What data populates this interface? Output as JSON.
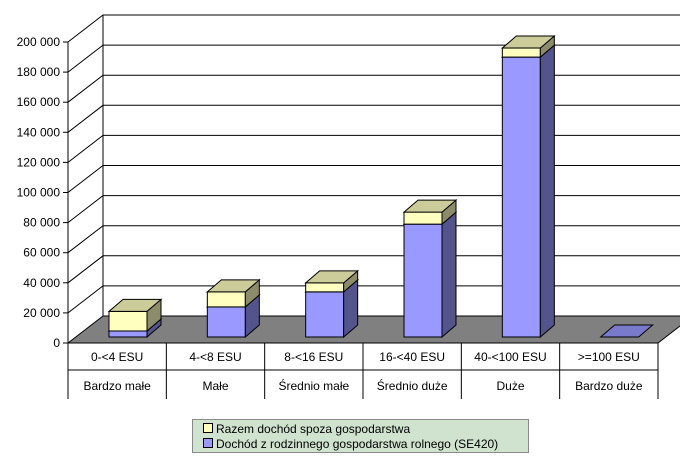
{
  "chart_data": {
    "type": "bar",
    "stacked": true,
    "three_d": true,
    "categories": [
      [
        "0-<4 ESU",
        "Bardzo małe"
      ],
      [
        "4-<8 ESU",
        "Małe"
      ],
      [
        "8-<16 ESU",
        "Średnio małe"
      ],
      [
        "16-<40 ESU",
        "Średnio duże"
      ],
      [
        "40-<100 ESU",
        "Duże"
      ],
      [
        ">=100 ESU",
        "Bardzo duże"
      ]
    ],
    "series": [
      {
        "name": "Dochód z rodzinnego gospodarstwa rolnego (SE420)",
        "values": [
          4000,
          20000,
          30000,
          75000,
          186000,
          0
        ],
        "color": "#9999ff"
      },
      {
        "name": "Razem dochód spoza gospodarstwa",
        "values": [
          13000,
          10000,
          6000,
          8000,
          6000,
          0
        ],
        "color": "#ffffc0"
      }
    ],
    "ylim": [
      0,
      200000
    ],
    "yticks": [
      0,
      20000,
      40000,
      60000,
      80000,
      100000,
      120000,
      140000,
      160000,
      180000,
      200000
    ],
    "ytick_labels": [
      "0",
      "20 000",
      "40 000",
      "60 000",
      "80 000",
      "100 000",
      "120 000",
      "140 000",
      "160 000",
      "180 000",
      "200 000"
    ],
    "grid": true,
    "legend_position": "bottom",
    "title": "",
    "xlabel": "",
    "ylabel": ""
  },
  "legend": {
    "items": [
      {
        "label": "Razem dochód spoza gospodarstwa",
        "color": "#ffffc0"
      },
      {
        "label": "Dochód z rodzinnego gospodarstwa rolnego (SE420)",
        "color": "#9999ff"
      }
    ]
  }
}
